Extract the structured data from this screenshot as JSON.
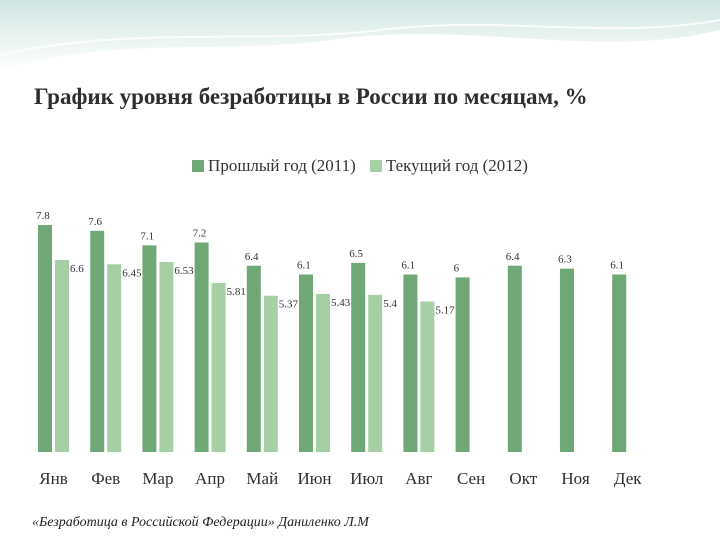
{
  "colors": {
    "background_top": "#d7ece8",
    "series_2011": "#6fa876",
    "series_2012": "#a7cfa6"
  },
  "chart_data": {
    "type": "bar",
    "title": "График уровня безработицы в России по месяцам, %",
    "categories": [
      "Янв",
      "Фев",
      "Мар",
      "Апр",
      "Май",
      "Июн",
      "Июл",
      "Авг",
      "Сен",
      "Окт",
      "Ноя",
      "Дек"
    ],
    "series": [
      {
        "name": "Прошлый год (2011)",
        "color": "#6fa876",
        "values": [
          7.8,
          7.6,
          7.1,
          7.2,
          6.4,
          6.1,
          6.5,
          6.1,
          6,
          6.4,
          6.3,
          6.1
        ],
        "labels": [
          "7.8",
          "7.6",
          "7.1",
          "7.2",
          "6.4",
          "6.1",
          "6.5",
          "6.1",
          "6",
          "6.4",
          "6.3",
          "6.1"
        ]
      },
      {
        "name": "Текущий год (2012)",
        "color": "#a7cfa6",
        "values": [
          6.6,
          6.45,
          6.53,
          5.81,
          5.37,
          5.43,
          5.4,
          5.17,
          null,
          null,
          null,
          null
        ],
        "labels": [
          "6.6",
          "6.45",
          "6.53",
          "5.81",
          "5.37",
          "5.43",
          "5.4",
          "5.17",
          "",
          "",
          "",
          ""
        ]
      }
    ],
    "ylim": [
      0,
      8.2
    ],
    "grid": false,
    "legend_position": "top"
  },
  "source": "«Безработица в Российской Федерации»  Даниленко Л.М"
}
